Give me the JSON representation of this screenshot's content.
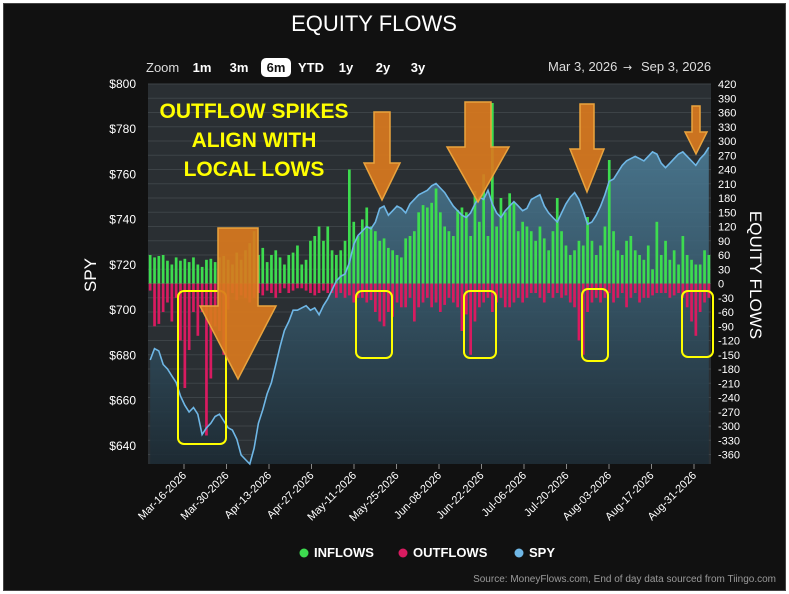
{
  "chart_data": {
    "type": "bar+area",
    "title": "EQUITY FLOWS",
    "ylabel_left": "SPY",
    "ylabel_right": "EQUITY FLOWS",
    "source": "Source: MoneyFlows.com, End of day data sourced from Tiingo.com",
    "zoom": {
      "label": "Zoom",
      "options": [
        "1m",
        "3m",
        "6m",
        "YTD",
        "1y",
        "2y",
        "3y"
      ],
      "selected": "6m"
    },
    "date_range": {
      "from": "Mar 3, 2026",
      "arrow": "→",
      "to": "Sep 3, 2026"
    },
    "y_left": {
      "ticks": [
        "$800",
        "$780",
        "$760",
        "$740",
        "$720",
        "$700",
        "$680",
        "$660",
        "$640"
      ],
      "range": [
        632,
        800
      ]
    },
    "y_right": {
      "ticks": [
        "420",
        "390",
        "360",
        "330",
        "300",
        "270",
        "240",
        "210",
        "180",
        "150",
        "120",
        "90",
        "60",
        "30",
        "0",
        "-30",
        "-60",
        "-90",
        "-120",
        "-150",
        "-180",
        "-210",
        "-240",
        "-270",
        "-300",
        "-330",
        "-360"
      ],
      "range": [
        -380,
        420
      ]
    },
    "x_ticks": [
      "Mar-16-2026",
      "Mar-30-2026",
      "Apr-13-2026",
      "Apr-27-2026",
      "May-11-2026",
      "May-25-2026",
      "Jun-08-2026",
      "Jun-22-2026",
      "Jul-06-2026",
      "Jul-20-2026",
      "Aug-03-2026",
      "Aug-17-2026",
      "Aug-31-2026"
    ],
    "legend": [
      {
        "name": "INFLOWS",
        "color": "#3ddc4f"
      },
      {
        "name": "OUTFLOWS",
        "color": "#d81b60"
      },
      {
        "name": "SPY",
        "color": "#6fb7e6"
      }
    ],
    "annotation": "OUTFLOW SPIKES\nALIGN WITH\nLOCAL LOWS",
    "colors": {
      "inflow": "#3ddc4f",
      "outflow": "#d81b60",
      "spy_line": "#6fb7e6",
      "annotation": "#ffff00",
      "arrow": "#d97a1e"
    },
    "num_days": 130,
    "inflows": [
      60,
      55,
      58,
      60,
      48,
      40,
      55,
      48,
      52,
      45,
      55,
      40,
      35,
      50,
      52,
      45,
      55,
      58,
      50,
      40,
      65,
      50,
      70,
      85,
      110,
      60,
      75,
      45,
      60,
      70,
      55,
      40,
      60,
      65,
      80,
      40,
      50,
      90,
      100,
      120,
      90,
      120,
      70,
      60,
      70,
      90,
      240,
      130,
      100,
      135,
      160,
      120,
      110,
      90,
      95,
      75,
      70,
      60,
      55,
      95,
      100,
      110,
      150,
      165,
      160,
      170,
      200,
      150,
      120,
      110,
      100,
      155,
      160,
      150,
      100,
      195,
      130,
      230,
      100,
      380,
      120,
      180,
      150,
      190,
      170,
      110,
      130,
      120,
      110,
      90,
      120,
      95,
      70,
      110,
      180,
      110,
      80,
      60,
      70,
      90,
      80,
      140,
      90,
      60,
      80,
      120,
      260,
      110,
      70,
      60,
      90,
      100,
      70,
      60,
      50,
      80,
      30,
      130,
      60,
      90,
      50,
      70,
      40,
      100,
      60,
      50,
      40,
      40,
      70,
      60
    ],
    "outflows": [
      -15,
      -90,
      -85,
      -60,
      -40,
      -80,
      -30,
      -120,
      -220,
      -140,
      -60,
      -110,
      -60,
      -320,
      -200,
      -90,
      -100,
      -150,
      -55,
      -20,
      -35,
      -25,
      -30,
      -40,
      -30,
      -20,
      -25,
      -15,
      -20,
      -30,
      -20,
      -10,
      -20,
      -15,
      -10,
      -10,
      -15,
      -20,
      -25,
      -20,
      -15,
      -20,
      -20,
      -30,
      -20,
      -30,
      -25,
      -40,
      -30,
      -30,
      -40,
      -35,
      -60,
      -80,
      -90,
      -60,
      -70,
      -40,
      -50,
      -50,
      -30,
      -80,
      -50,
      -40,
      -30,
      -50,
      -40,
      -60,
      -45,
      -30,
      -40,
      -50,
      -100,
      -65,
      -150,
      -80,
      -50,
      -40,
      -30,
      -60,
      -40,
      -30,
      -50,
      -50,
      -40,
      -30,
      -40,
      -30,
      -20,
      -20,
      -30,
      -40,
      -20,
      -30,
      -20,
      -30,
      -25,
      -40,
      -50,
      -120,
      -150,
      -60,
      -40,
      -30,
      -40,
      -30,
      -20,
      -40,
      -30,
      -20,
      -50,
      -30,
      -20,
      -40,
      -30,
      -30,
      -25,
      -20,
      -20,
      -20,
      -30,
      -25,
      -20,
      -30,
      -50,
      -80,
      -110,
      -60,
      -40,
      -30
    ],
    "spy": [
      678,
      683,
      682,
      676,
      674,
      671,
      668,
      662,
      658,
      655,
      657,
      654,
      645,
      648,
      650,
      653,
      654,
      651,
      648,
      647,
      643,
      636,
      634,
      632,
      639,
      650,
      656,
      663,
      668,
      676,
      684,
      691,
      695,
      700,
      700,
      701,
      702,
      700,
      701,
      698,
      702,
      705,
      709,
      713,
      715,
      716,
      721,
      729,
      733,
      735,
      737,
      736,
      739,
      745,
      746,
      742,
      744,
      746,
      745,
      743,
      747,
      749,
      751,
      752,
      753,
      755,
      756,
      754,
      752,
      749,
      746,
      744,
      742,
      741,
      743,
      747,
      750,
      749,
      753,
      747,
      743,
      741,
      744,
      746,
      748,
      746,
      744,
      745,
      749,
      750,
      751,
      746,
      743,
      741,
      739,
      743,
      747,
      750,
      752,
      749,
      744,
      738,
      739,
      742,
      746,
      751,
      757,
      758,
      761,
      764,
      766,
      767,
      768,
      767,
      766,
      768,
      770,
      769,
      765,
      763,
      765,
      767,
      769,
      770,
      768,
      766,
      764,
      767,
      769,
      772
    ]
  }
}
